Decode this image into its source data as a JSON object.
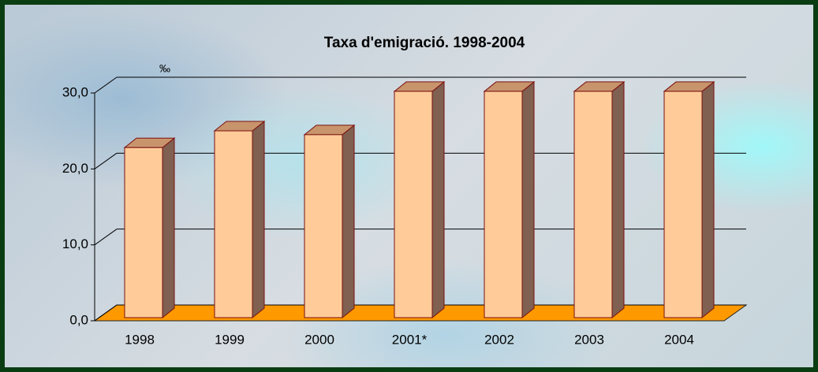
{
  "chart_data": {
    "type": "bar",
    "title": "Taxa d'emigració. 1998-2004",
    "y_unit": "‰",
    "categories": [
      "1998",
      "1999",
      "2000",
      "2001*",
      "2002",
      "2003",
      "2004"
    ],
    "values": [
      22.4,
      24.6,
      24.1,
      29.8,
      29.8,
      29.8,
      29.8
    ],
    "color": "#ffcc99",
    "floor_color": "#ff9900",
    "ylim": [
      0,
      30
    ],
    "yticks": [
      {
        "value": 0,
        "label": "0,0"
      },
      {
        "value": 10,
        "label": "10,0"
      },
      {
        "value": 20,
        "label": "20,0"
      },
      {
        "value": 30,
        "label": "30,0"
      }
    ],
    "grid": true
  }
}
